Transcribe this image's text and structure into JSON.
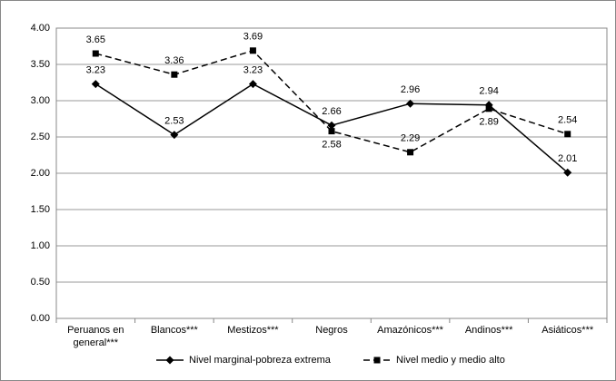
{
  "chart_data": {
    "type": "line",
    "categories": [
      "Peruanos en general***",
      "Blancos***",
      "Mestizos***",
      "Negros",
      "Amazónicos***",
      "Andinos***",
      "Asiáticos***"
    ],
    "series": [
      {
        "name": "Nivel marginal-pobreza extrema",
        "color": "#000000",
        "values": [
          3.23,
          2.53,
          3.23,
          2.66,
          2.96,
          2.94,
          2.01
        ]
      },
      {
        "name": "Nivel medio y medio alto",
        "color": "#000000",
        "values": [
          3.65,
          3.36,
          3.69,
          2.58,
          2.29,
          2.89,
          2.54
        ]
      }
    ],
    "ylim": [
      0,
      4
    ],
    "yticks": [
      {
        "value": 0,
        "label": "0.00"
      },
      {
        "value": 0.5,
        "label": "0.50"
      },
      {
        "value": 1,
        "label": "1.00"
      },
      {
        "value": 1.5,
        "label": "1.50"
      },
      {
        "value": 2,
        "label": "2.00"
      },
      {
        "value": 2.5,
        "label": "2.50"
      },
      {
        "value": 3,
        "label": "3.00"
      },
      {
        "value": 3.5,
        "label": "3.50"
      },
      {
        "value": 4,
        "label": "4.00"
      }
    ],
    "grid": true,
    "legend": "bottom"
  }
}
